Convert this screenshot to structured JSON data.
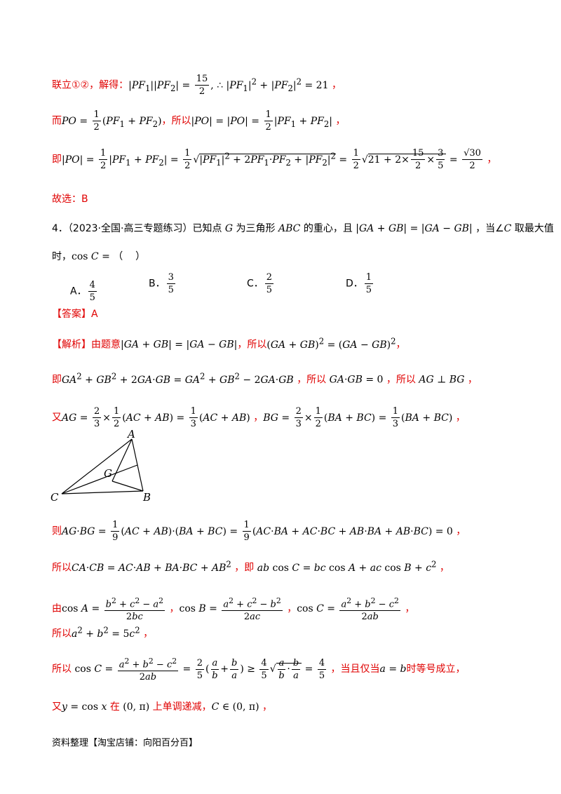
{
  "lines": {
    "l1_prefix": "联立①②，解得：",
    "l1_math": "|PF₁||PF₂| = 15/2 , ∴ |PF₁|² + |PF₂|² = 21 ，",
    "l2_prefix": "而",
    "l2_math_a": "PO = ½(PF₁ + PF₂)",
    "l2_mid": "，所以",
    "l2_math_b": "|PO| = |PO| = ½|PF₁ + PF₂| ，",
    "l3_prefix": "即",
    "l3_math": "|PO| = ½|PF₁ + PF₂| = ½√(|PF₁|² + 2PF₁·PF₂ + |PF₂|²) = ½√(21 + 2×15/2×3/5) = √30/2 ，",
    "answer_prev": "故选：B",
    "q4_num": "4．",
    "q4_source": "（2023·全国·高三专题练习）",
    "q4_text": "已知点 G 为三角形 ABC 的重心，且 |GA + GB| = |GA − GB| ，当∠C 取最大值",
    "q4_text2": "时，cos C = （    ）",
    "optA_label": "A．",
    "optA": "4/5",
    "optB_label": "B．",
    "optB": "3/5",
    "optC_label": "C．",
    "optC": "2/5",
    "optD_label": "D．",
    "optD": "1/5",
    "ans": "【答案】A",
    "jx1": "【解析】由题意 |GA + GB| = |GA − GB|，所以 (GA + GB)² = (GA − GB)²，",
    "jx2_prefix": "即",
    "jx2_math": "GA² + GB² + 2GA·GB = GA² + GB² − 2GA·GB ，所以 GA·GB = 0 ，所以 AG ⊥ BG ，",
    "jx3_prefix": "又",
    "jx3_math": "AG = 2/3 × ½(AC + AB) = ⅓(AC + AB) ，BG = 2/3 × ½(BA + BC) = ⅓(BA + BC) ，",
    "jx4_prefix": "则",
    "jx4_math": "AG·BG = 1/9(AC + AB)·(BA + BC) = 1/9(AC·BA + AC·BC + AB·BA + AB·BC) = 0 ，",
    "jx5_prefix": "所以",
    "jx5_math": "CA·CB = AC·AB + BA·BC + AB² ，即 ab cos C = bc cos A + ac cos B + c² ，",
    "jx6_prefix": "由",
    "jx6_math": "cos A = (b² + c² − a²)/2bc ，cos B = (a² + c² − b²)/2ac ，cos C = (a² + b² − c²)/2ab ，",
    "jx7_prefix": "所以",
    "jx7_math": "a² + b² = 5c² ，",
    "jx8_prefix": "所以",
    "jx8_math": "cos C = (a² + b² − c²)/2ab = 2/5(a/b + b/a) ≥ 4/5√(a/b·b/a) = 4/5 ，",
    "jx8_tail": "当且仅当 a = b 时等号成立，",
    "jx9_prefix": "又",
    "jx9_math": "y = cos x 在 (0,π) 上单调递减，C ∈ (0,π) ，"
  },
  "figure": {
    "A": "A",
    "B": "B",
    "C": "C",
    "G": "G"
  },
  "footer": "资料整理【淘宝店铺：向阳百分百】"
}
